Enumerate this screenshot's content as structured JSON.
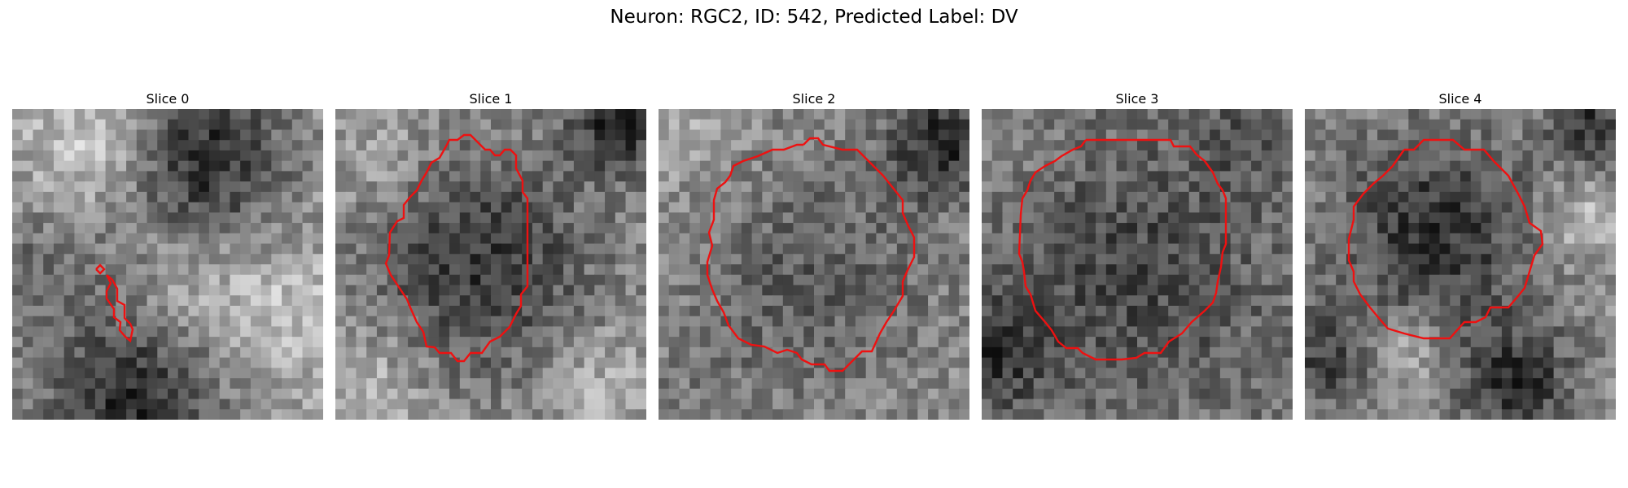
{
  "figure": {
    "title": "Neuron: RGC2, ID: 542, Predicted Label: DV"
  },
  "panels": [
    {
      "title": "Slice 0",
      "contour_color": "#ee1111",
      "seed": 11,
      "texture": "light"
    },
    {
      "title": "Slice 1",
      "contour_color": "#ee1111",
      "seed": 23,
      "texture": "mid"
    },
    {
      "title": "Slice 2",
      "contour_color": "#ee1111",
      "seed": 37,
      "texture": "mid"
    },
    {
      "title": "Slice 3",
      "contour_color": "#ee1111",
      "seed": 53,
      "texture": "dark"
    },
    {
      "title": "Slice 4",
      "contour_color": "#ee1111",
      "seed": 71,
      "texture": "mid"
    }
  ]
}
